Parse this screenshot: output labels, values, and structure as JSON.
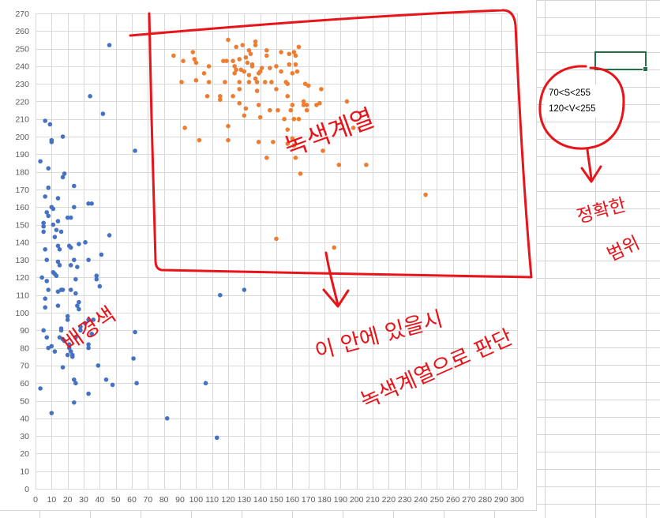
{
  "chart_data": {
    "type": "scatter",
    "xlim": [
      0,
      300
    ],
    "ylim": [
      0,
      270
    ],
    "x_ticks": [
      0,
      10,
      20,
      30,
      40,
      50,
      60,
      70,
      80,
      90,
      100,
      110,
      120,
      130,
      140,
      150,
      160,
      170,
      180,
      190,
      200,
      210,
      220,
      230,
      240,
      250,
      260,
      270,
      280,
      290,
      300
    ],
    "y_ticks": [
      0,
      10,
      20,
      30,
      40,
      50,
      60,
      70,
      80,
      90,
      100,
      110,
      120,
      130,
      140,
      150,
      160,
      170,
      180,
      190,
      200,
      210,
      220,
      230,
      240,
      250,
      260,
      270
    ],
    "grid": true,
    "legend": "none",
    "series": [
      {
        "color": "#4472C4",
        "points": [
          [
            46,
            252
          ],
          [
            34,
            223
          ],
          [
            42,
            213
          ],
          [
            62,
            192
          ],
          [
            6,
            209
          ],
          [
            9,
            207
          ],
          [
            10,
            198
          ],
          [
            10,
            197
          ],
          [
            17,
            200
          ],
          [
            3,
            186
          ],
          [
            8,
            182
          ],
          [
            18,
            179
          ],
          [
            17,
            177
          ],
          [
            8,
            171
          ],
          [
            24,
            172
          ],
          [
            6,
            166
          ],
          [
            14,
            165
          ],
          [
            24,
            160
          ],
          [
            10,
            160
          ],
          [
            11,
            159
          ],
          [
            33,
            162
          ],
          [
            35,
            162
          ],
          [
            7,
            157
          ],
          [
            8,
            155
          ],
          [
            20,
            154
          ],
          [
            22,
            154
          ],
          [
            5,
            151
          ],
          [
            5,
            149
          ],
          [
            14,
            152
          ],
          [
            11,
            150
          ],
          [
            13,
            147
          ],
          [
            16,
            146
          ],
          [
            5,
            146
          ],
          [
            12,
            143
          ],
          [
            46,
            144
          ],
          [
            31,
            140
          ],
          [
            21,
            138
          ],
          [
            27,
            139
          ],
          [
            14,
            138
          ],
          [
            15,
            136
          ],
          [
            6,
            136
          ],
          [
            22,
            137
          ],
          [
            41,
            133
          ],
          [
            24,
            130
          ],
          [
            22,
            127
          ],
          [
            33,
            130
          ],
          [
            7,
            130
          ],
          [
            14,
            129
          ],
          [
            15,
            127
          ],
          [
            26,
            126
          ],
          [
            11,
            123
          ],
          [
            12,
            122
          ],
          [
            13,
            121
          ],
          [
            4,
            120
          ],
          [
            7,
            118
          ],
          [
            38,
            121
          ],
          [
            38,
            119
          ],
          [
            25,
            119
          ],
          [
            17,
            113
          ],
          [
            16,
            113
          ],
          [
            22,
            113
          ],
          [
            25,
            111
          ],
          [
            40,
            115
          ],
          [
            8,
            113
          ],
          [
            14,
            112
          ],
          [
            6,
            108
          ],
          [
            27,
            106
          ],
          [
            26,
            104
          ],
          [
            27,
            102
          ],
          [
            6,
            103
          ],
          [
            14,
            104
          ],
          [
            20,
            98
          ],
          [
            20,
            96
          ],
          [
            33,
            96
          ],
          [
            36,
            96
          ],
          [
            31,
            94
          ],
          [
            28,
            92
          ],
          [
            16,
            91
          ],
          [
            16,
            90
          ],
          [
            5,
            90
          ],
          [
            28,
            90
          ],
          [
            35,
            88
          ],
          [
            7,
            86
          ],
          [
            15,
            86
          ],
          [
            17,
            85
          ],
          [
            25,
            86
          ],
          [
            18,
            84
          ],
          [
            21,
            82
          ],
          [
            33,
            82
          ],
          [
            33,
            80
          ],
          [
            10,
            81
          ],
          [
            8,
            80
          ],
          [
            21,
            80
          ],
          [
            22,
            78
          ],
          [
            23,
            76
          ],
          [
            12,
            78
          ],
          [
            20,
            76
          ],
          [
            23,
            75
          ],
          [
            39,
            70
          ],
          [
            17,
            69
          ],
          [
            62,
            89
          ],
          [
            61,
            74
          ],
          [
            63,
            60
          ],
          [
            24,
            62
          ],
          [
            25,
            60
          ],
          [
            44,
            62
          ],
          [
            48,
            59
          ],
          [
            33,
            54
          ],
          [
            24,
            49
          ],
          [
            3,
            57
          ],
          [
            10,
            43
          ],
          [
            106,
            60
          ],
          [
            82,
            40
          ],
          [
            113,
            29
          ],
          [
            115,
            110
          ],
          [
            130,
            113
          ]
        ]
      },
      {
        "color": "#ED7D31",
        "points": [
          [
            86,
            246
          ],
          [
            98,
            248
          ],
          [
            99,
            244
          ],
          [
            120,
            255
          ],
          [
            125,
            251
          ],
          [
            129,
            252
          ],
          [
            137,
            254
          ],
          [
            137,
            252
          ],
          [
            164,
            251
          ],
          [
            158,
            247
          ],
          [
            133,
            249
          ],
          [
            144,
            249
          ],
          [
            144,
            246
          ],
          [
            153,
            248
          ],
          [
            161,
            248
          ],
          [
            162,
            246
          ],
          [
            134,
            247
          ],
          [
            131,
            245
          ],
          [
            92,
            243
          ],
          [
            100,
            242
          ],
          [
            117,
            243
          ],
          [
            119,
            243
          ],
          [
            123,
            243
          ],
          [
            127,
            244
          ],
          [
            132,
            242
          ],
          [
            135,
            241
          ],
          [
            108,
            240
          ],
          [
            124,
            240
          ],
          [
            125,
            238
          ],
          [
            141,
            239
          ],
          [
            140,
            237
          ],
          [
            139,
            236
          ],
          [
            150,
            240
          ],
          [
            128,
            238
          ],
          [
            130,
            237
          ],
          [
            135,
            240
          ],
          [
            133,
            235
          ],
          [
            146,
            239
          ],
          [
            158,
            241
          ],
          [
            162,
            241
          ],
          [
            163,
            237
          ],
          [
            105,
            236
          ],
          [
            124,
            236
          ],
          [
            153,
            237
          ],
          [
            160,
            236
          ],
          [
            137,
            233
          ],
          [
            138,
            231
          ],
          [
            143,
            231
          ],
          [
            147,
            231
          ],
          [
            100,
            232
          ],
          [
            108,
            231
          ],
          [
            91,
            231
          ],
          [
            118,
            231
          ],
          [
            133,
            231
          ],
          [
            127,
            231
          ],
          [
            156,
            231
          ],
          [
            157,
            230
          ],
          [
            168,
            230
          ],
          [
            170,
            229
          ],
          [
            178,
            227
          ],
          [
            150,
            227
          ],
          [
            127,
            227
          ],
          [
            138,
            226
          ],
          [
            123,
            223
          ],
          [
            107,
            223
          ],
          [
            115,
            223
          ],
          [
            157,
            223
          ],
          [
            115,
            221
          ],
          [
            167,
            220
          ],
          [
            167,
            218
          ],
          [
            127,
            219
          ],
          [
            139,
            218
          ],
          [
            146,
            215
          ],
          [
            151,
            215
          ],
          [
            160,
            218
          ],
          [
            159,
            215
          ],
          [
            169,
            218
          ],
          [
            175,
            218
          ],
          [
            169,
            215
          ],
          [
            194,
            220
          ],
          [
            177,
            219
          ],
          [
            131,
            216
          ],
          [
            155,
            210
          ],
          [
            130,
            212
          ],
          [
            140,
            211
          ],
          [
            161,
            210
          ],
          [
            164,
            210
          ],
          [
            120,
            206
          ],
          [
            93,
            205
          ],
          [
            198,
            205
          ],
          [
            157,
            204
          ],
          [
            160,
            199
          ],
          [
            120,
            198
          ],
          [
            102,
            198
          ],
          [
            139,
            197
          ],
          [
            148,
            197
          ],
          [
            157,
            196
          ],
          [
            161,
            195
          ],
          [
            179,
            192
          ],
          [
            144,
            188
          ],
          [
            162,
            188
          ],
          [
            189,
            184
          ],
          [
            206,
            184
          ],
          [
            165,
            179
          ],
          [
            243,
            167
          ],
          [
            150,
            142
          ],
          [
            186,
            137
          ]
        ]
      }
    ]
  },
  "textbox": {
    "line1": "70<S<255",
    "line2": "120<V<255"
  },
  "annotations": {
    "color": "#E8141A",
    "rect_label": "녹색계열",
    "left_cluster_label": "배경색",
    "arrow_note_line1": "이 안에 있을시",
    "arrow_note_line2": "녹색계열으로 판단",
    "range_label_line1": "정확한",
    "range_label_line2": "범위"
  }
}
